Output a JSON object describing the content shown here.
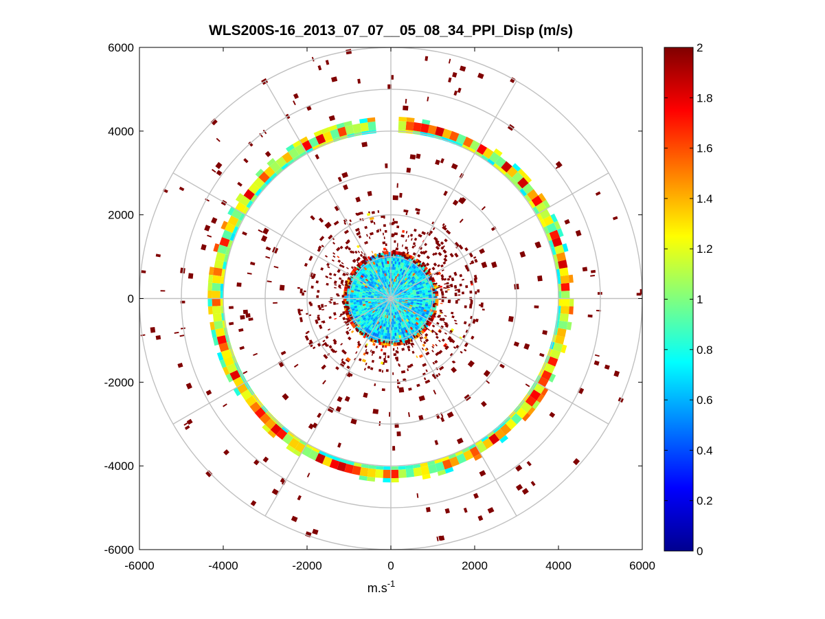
{
  "chart_data": {
    "type": "heatmap",
    "subtype": "polar-ppi",
    "title": "WLS200S-16_2013_07_07__05_08_34_PPI_Disp (m/s)",
    "xlabel": "m.s",
    "xlabel_superscript": "-1",
    "ylabel": "",
    "xlim": [
      -6000,
      6000
    ],
    "ylim": [
      -6000,
      6000
    ],
    "xticks": [
      -6000,
      -4000,
      -2000,
      0,
      2000,
      4000,
      6000
    ],
    "yticks": [
      -6000,
      -4000,
      -2000,
      0,
      2000,
      4000,
      6000
    ],
    "xtick_labels": [
      "-6000",
      "-4000",
      "-2000",
      "0",
      "2000",
      "4000",
      "6000"
    ],
    "ytick_labels": [
      "-6000",
      "-4000",
      "-2000",
      "0",
      "2000",
      "4000",
      "6000"
    ],
    "polar_grid_radii": [
      1000,
      2000,
      3000,
      4000,
      5000,
      6000
    ],
    "polar_grid_angles_deg": [
      0,
      30,
      60,
      90,
      120,
      150,
      180,
      210,
      240,
      270,
      300,
      330
    ],
    "colorbar": {
      "colormap": "jet",
      "clim": [
        0,
        2
      ],
      "ticks": [
        0,
        0.2,
        0.4,
        0.6,
        0.8,
        1,
        1.2,
        1.4,
        1.6,
        1.8,
        2
      ],
      "tick_labels": [
        "0",
        "0.2",
        "0.4",
        "0.6",
        "0.8",
        "1",
        "1.2",
        "1.4",
        "1.6",
        "1.8",
        "2"
      ]
    },
    "inner_disk": {
      "r_max": 1100,
      "value_mean": 0.7
    },
    "inner_scatter_zone": {
      "r_min": 1000,
      "r_max": 2200,
      "value": 2
    },
    "ring_main": {
      "r_min": 4050,
      "r_max": 4250,
      "value_range": [
        0.7,
        1.9
      ]
    },
    "outer_scatter": {
      "r_min": 2200,
      "r_max": 6000,
      "value": 2
    }
  }
}
